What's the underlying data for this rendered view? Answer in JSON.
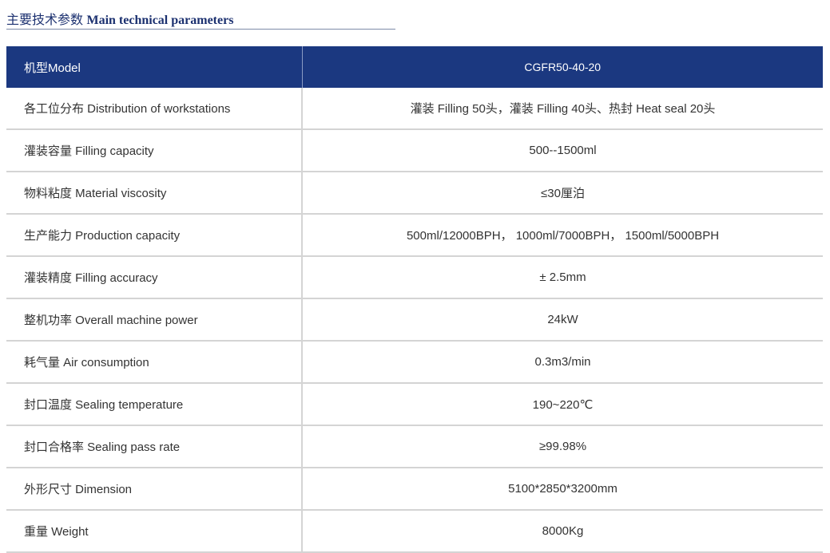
{
  "heading": {
    "zh": "主要技术参数",
    "en": "Main technical parameters"
  },
  "table": {
    "header": {
      "label": "机型Model",
      "value": "CGFR50-40-20"
    },
    "rows": [
      {
        "label": "各工位分布 Distribution of workstations",
        "value": "灌装 Filling 50头，灌装 Filling 40头、热封 Heat seal 20头"
      },
      {
        "label": "灌装容量 Filling capacity",
        "value": "500--1500ml"
      },
      {
        "label": "物料粘度 Material viscosity",
        "value": "≤30厘泊"
      },
      {
        "label": "生产能力 Production capacity",
        "value": "500ml/12000BPH， 1000ml/7000BPH， 1500ml/5000BPH"
      },
      {
        "label": "灌装精度 Filling accuracy",
        "value": "± 2.5mm"
      },
      {
        "label": "整机功率 Overall machine power",
        "value": "24kW"
      },
      {
        "label": "耗气量 Air consumption",
        "value": "0.3m3/min"
      },
      {
        "label": "封口温度 Sealing temperature",
        "value": "190~220℃"
      },
      {
        "label": "封口合格率 Sealing pass rate",
        "value": "≥99.98%"
      },
      {
        "label": "外形尺寸 Dimension",
        "value": "5100*2850*3200mm"
      },
      {
        "label": "重量 Weight",
        "value": "8000Kg"
      }
    ]
  },
  "colors": {
    "header_bg": "#1b3880",
    "title": "#1c3170",
    "row_line": "#d4d4d4"
  }
}
